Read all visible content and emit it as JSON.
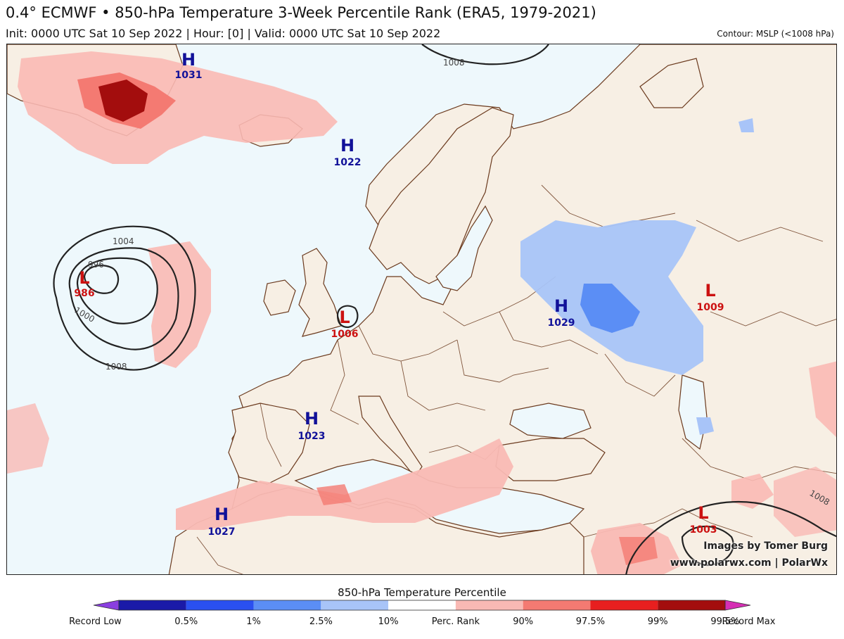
{
  "header": {
    "title": "0.4° ECMWF • 850-hPa Temperature 3-Week Percentile Rank (ERA5, 1979-2021)",
    "subtitle": "Init: 0000 UTC Sat 10 Sep 2022 | Hour: [0] | Valid: 0000 UTC Sat 10 Sep 2022",
    "contour_note": "Contour: MSLP (<1008 hPa)"
  },
  "credits": {
    "line1": "Images by Tomer Burg",
    "line2": "www.polarwx.com | PolarWx"
  },
  "pressure_centers": [
    {
      "type": "H",
      "value": "1031"
    },
    {
      "type": "H",
      "value": "1022"
    },
    {
      "type": "L",
      "value": "986"
    },
    {
      "type": "L",
      "value": "1006"
    },
    {
      "type": "H",
      "value": "1029"
    },
    {
      "type": "L",
      "value": "1009"
    },
    {
      "type": "H",
      "value": "1023"
    },
    {
      "type": "H",
      "value": "1027"
    },
    {
      "type": "L",
      "value": "1003"
    }
  ],
  "isobar_labels": [
    "1008",
    "1004",
    "996",
    "1000",
    "1008",
    "1008"
  ],
  "colorbar": {
    "title": "850-hPa Temperature Percentile",
    "labels": [
      "Record Low",
      "0.5%",
      "1%",
      "2.5%",
      "10%",
      "Perc. Rank",
      "90%",
      "97.5%",
      "99%",
      "99.5%",
      "Record Max"
    ],
    "colors": [
      "#8a3fe0",
      "#1a1aa8",
      "#2a50f0",
      "#5b8ef5",
      "#a8c4f8",
      "#ffffff",
      "#f9b9b4",
      "#f47a72",
      "#e81f1f",
      "#a30d0d",
      "#d62fb4"
    ]
  },
  "colors": {
    "ocean": "#eef8fc",
    "land": "#f7efe4",
    "border": "#6b3a1e",
    "high": "#111199",
    "low": "#cc1111"
  }
}
